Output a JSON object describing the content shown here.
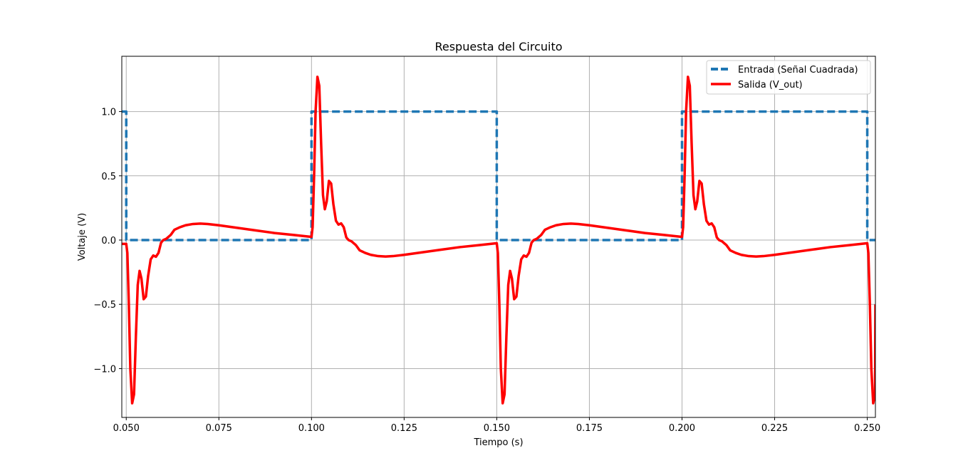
{
  "chart_data": {
    "type": "line",
    "title": "Respuesta del Circuito",
    "xlabel": "Tiempo (s)",
    "ylabel": "Voltaje (V)",
    "xlim": [
      0.0488,
      0.2522
    ],
    "ylim": [
      -1.38,
      1.43
    ],
    "grid": true,
    "legend_position": "top-right",
    "x_ticks": [
      0.05,
      0.075,
      0.1,
      0.125,
      0.15,
      0.175,
      0.2,
      0.225,
      0.25
    ],
    "x_tick_labels": [
      "0.050",
      "0.075",
      "0.100",
      "0.125",
      "0.150",
      "0.175",
      "0.200",
      "0.225",
      "0.250"
    ],
    "y_ticks": [
      -1.0,
      -0.5,
      0.0,
      0.5,
      1.0
    ],
    "y_tick_labels": [
      "−1.0",
      "−0.5",
      "0.0",
      "0.5",
      "1.0"
    ],
    "series": [
      {
        "name": "Entrada (Señal Cuadrada)",
        "color": "#1f77b4",
        "style": "dashed",
        "x": [
          0.0488,
          0.05,
          0.05,
          0.1,
          0.1,
          0.15,
          0.15,
          0.2,
          0.2,
          0.25,
          0.25,
          0.2522
        ],
        "y": [
          1.0,
          1.0,
          0.0,
          0.0,
          1.0,
          1.0,
          0.0,
          0.0,
          1.0,
          1.0,
          0.0,
          0.0
        ]
      },
      {
        "name": "Salida (V_out)",
        "color": "#ff0000",
        "style": "solid",
        "x": [
          0.0488,
          0.05,
          0.0503,
          0.0507,
          0.0511,
          0.0516,
          0.0521,
          0.0526,
          0.0531,
          0.0536,
          0.0541,
          0.0547,
          0.0553,
          0.0559,
          0.0566,
          0.0573,
          0.058,
          0.0587,
          0.0594,
          0.06,
          0.0608,
          0.062,
          0.063,
          0.0645,
          0.066,
          0.068,
          0.07,
          0.072,
          0.075,
          0.08,
          0.085,
          0.09,
          0.095,
          0.0999,
          0.1,
          0.1003,
          0.1007,
          0.1011,
          0.1016,
          0.1021,
          0.1026,
          0.1031,
          0.1036,
          0.1041,
          0.1047,
          0.1053,
          0.1059,
          0.1066,
          0.1073,
          0.108,
          0.1087,
          0.1094,
          0.11,
          0.1108,
          0.112,
          0.113,
          0.1145,
          0.116,
          0.118,
          0.12,
          0.122,
          0.125,
          0.13,
          0.135,
          0.14,
          0.145,
          0.1499,
          0.15,
          0.1503,
          0.1507,
          0.1511,
          0.1516,
          0.1521,
          0.1526,
          0.1531,
          0.1536,
          0.1541,
          0.1547,
          0.1553,
          0.1559,
          0.1566,
          0.1573,
          0.158,
          0.1587,
          0.1594,
          0.16,
          0.1608,
          0.162,
          0.163,
          0.1645,
          0.166,
          0.168,
          0.17,
          0.172,
          0.175,
          0.18,
          0.185,
          0.19,
          0.195,
          0.1999,
          0.2,
          0.2003,
          0.2007,
          0.2011,
          0.2016,
          0.2021,
          0.2026,
          0.2031,
          0.2036,
          0.2041,
          0.2047,
          0.2053,
          0.2059,
          0.2066,
          0.2073,
          0.208,
          0.2087,
          0.2094,
          0.21,
          0.2108,
          0.212,
          0.213,
          0.2145,
          0.216,
          0.218,
          0.22,
          0.222,
          0.225,
          0.23,
          0.235,
          0.24,
          0.245,
          0.2499,
          0.25,
          0.2503,
          0.2507,
          0.2511,
          0.2516,
          0.2521,
          0.2522
        ],
        "y": [
          -0.03,
          -0.03,
          -0.1,
          -0.5,
          -1.0,
          -1.27,
          -1.2,
          -0.75,
          -0.35,
          -0.24,
          -0.3,
          -0.46,
          -0.44,
          -0.28,
          -0.15,
          -0.12,
          -0.13,
          -0.1,
          -0.02,
          0.0,
          0.01,
          0.04,
          0.08,
          0.1,
          0.115,
          0.125,
          0.128,
          0.125,
          0.115,
          0.095,
          0.075,
          0.055,
          0.04,
          0.025,
          0.025,
          0.1,
          0.5,
          1.0,
          1.27,
          1.2,
          0.75,
          0.35,
          0.24,
          0.3,
          0.46,
          0.44,
          0.28,
          0.15,
          0.12,
          0.13,
          0.1,
          0.02,
          0.0,
          -0.01,
          -0.04,
          -0.08,
          -0.1,
          -0.115,
          -0.125,
          -0.128,
          -0.125,
          -0.115,
          -0.095,
          -0.075,
          -0.055,
          -0.04,
          -0.025,
          -0.025,
          -0.1,
          -0.5,
          -1.0,
          -1.27,
          -1.2,
          -0.75,
          -0.35,
          -0.24,
          -0.3,
          -0.46,
          -0.44,
          -0.28,
          -0.15,
          -0.12,
          -0.13,
          -0.1,
          -0.02,
          0.0,
          0.01,
          0.04,
          0.08,
          0.1,
          0.115,
          0.125,
          0.128,
          0.125,
          0.115,
          0.095,
          0.075,
          0.055,
          0.04,
          0.025,
          0.025,
          0.1,
          0.5,
          1.0,
          1.27,
          1.2,
          0.75,
          0.35,
          0.24,
          0.3,
          0.46,
          0.44,
          0.28,
          0.15,
          0.12,
          0.13,
          0.1,
          0.02,
          0.0,
          -0.01,
          -0.04,
          -0.08,
          -0.1,
          -0.115,
          -0.125,
          -0.128,
          -0.125,
          -0.115,
          -0.095,
          -0.075,
          -0.055,
          -0.04,
          -0.025,
          -0.025,
          -0.1,
          -0.5,
          -1.0,
          -1.27,
          -1.2,
          -0.5
        ]
      }
    ]
  }
}
